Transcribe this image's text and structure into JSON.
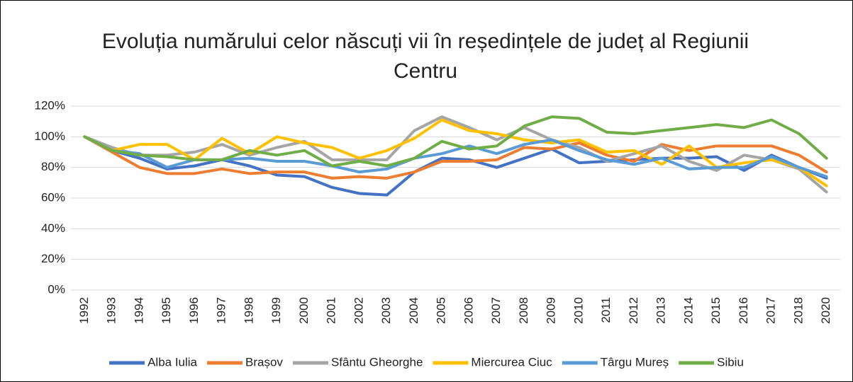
{
  "chart_data": {
    "type": "line",
    "title": "Evoluția numărului celor născuți vii în reședințele de județ al Regiunii Centru",
    "categories": [
      "1992",
      "1993",
      "1994",
      "1995",
      "1996",
      "1997",
      "1998",
      "1999",
      "2000",
      "2001",
      "2002",
      "2003",
      "2004",
      "2005",
      "2006",
      "2007",
      "2008",
      "2009",
      "2010",
      "2011",
      "2012",
      "2013",
      "2014",
      "2015",
      "2016",
      "2017",
      "2018",
      "2020"
    ],
    "series": [
      {
        "name": "Alba Iulia",
        "color": "#4472c4",
        "values": [
          100,
          91,
          86,
          79,
          81,
          85,
          81,
          75,
          74,
          67,
          63,
          62,
          77,
          86,
          85,
          80,
          86,
          92,
          83,
          84,
          85,
          86,
          86,
          87,
          78,
          88,
          80,
          73
        ]
      },
      {
        "name": "Brașov",
        "color": "#ed7d31",
        "values": [
          100,
          90,
          80,
          76,
          76,
          79,
          76,
          77,
          77,
          73,
          74,
          73,
          77,
          84,
          84,
          85,
          93,
          92,
          96,
          88,
          84,
          95,
          91,
          94,
          94,
          94,
          88,
          77
        ]
      },
      {
        "name": "Sfântu Gheorghe",
        "color": "#a5a5a5",
        "values": [
          100,
          93,
          88,
          88,
          90,
          95,
          88,
          93,
          97,
          85,
          85,
          85,
          104,
          113,
          106,
          98,
          106,
          98,
          93,
          84,
          89,
          94,
          84,
          78,
          88,
          85,
          79,
          64
        ]
      },
      {
        "name": "Miercurea Ciuc",
        "color": "#ffc000",
        "values": [
          100,
          91,
          95,
          95,
          85,
          99,
          89,
          100,
          96,
          93,
          86,
          91,
          99,
          111,
          104,
          102,
          98,
          96,
          98,
          90,
          91,
          82,
          94,
          80,
          83,
          85,
          80,
          68
        ]
      },
      {
        "name": "Târgu Mureș",
        "color": "#5b9bd5",
        "values": [
          100,
          91,
          89,
          80,
          85,
          85,
          86,
          84,
          84,
          81,
          77,
          79,
          86,
          89,
          94,
          89,
          95,
          98,
          91,
          85,
          82,
          86,
          79,
          80,
          80,
          87,
          80,
          74
        ]
      },
      {
        "name": "Sibiu",
        "color": "#70ad47",
        "values": [
          100,
          91,
          88,
          87,
          85,
          85,
          91,
          88,
          91,
          81,
          84,
          81,
          86,
          97,
          92,
          94,
          107,
          113,
          112,
          103,
          102,
          104,
          106,
          108,
          106,
          111,
          102,
          86
        ]
      }
    ],
    "ylim": [
      0,
      120
    ],
    "yticks": [
      {
        "value": 0,
        "label": "0%"
      },
      {
        "value": 20,
        "label": "20%"
      },
      {
        "value": 40,
        "label": "40%"
      },
      {
        "value": 60,
        "label": "60%"
      },
      {
        "value": 80,
        "label": "80%"
      },
      {
        "value": 100,
        "label": "100%"
      },
      {
        "value": 120,
        "label": "120%"
      }
    ],
    "grid": true,
    "legend": "bottom"
  }
}
